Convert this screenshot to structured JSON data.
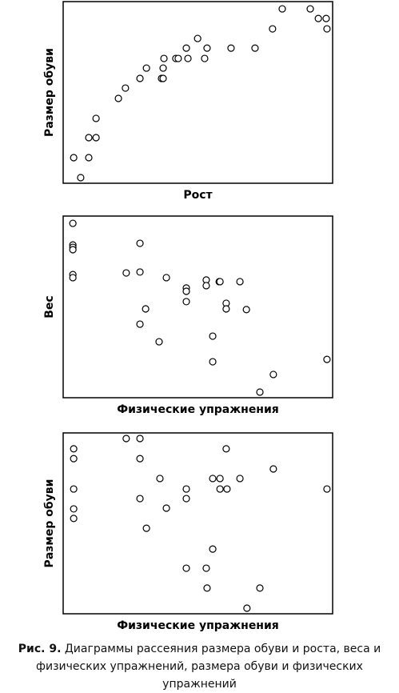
{
  "chart_data": [
    {
      "type": "scatter",
      "x_label": "Рост",
      "y_label": "Размер обуви",
      "color": "#000000",
      "xlim": [
        0,
        100
      ],
      "ylim": [
        0,
        100
      ],
      "x": [
        3.9,
        6.5,
        9.5,
        9.5,
        12.2,
        12.2,
        20.5,
        23.1,
        28.5,
        30.9,
        36.5,
        37.1,
        37.1,
        37.4,
        41.8,
        42.7,
        45.7,
        46.3,
        49.9,
        52.5,
        53.4,
        62.3,
        71.2,
        77.7,
        81.3,
        91.7,
        94.7,
        97.6,
        97.9
      ],
      "values": [
        14.1,
        3.1,
        25.1,
        14.1,
        35.7,
        25.1,
        46.7,
        52.4,
        57.7,
        63.4,
        57.7,
        57.7,
        63.4,
        68.7,
        68.7,
        68.7,
        74.4,
        68.7,
        79.7,
        68.7,
        74.4,
        74.4,
        74.4,
        85.0,
        96.0,
        96.0,
        90.7,
        90.7,
        85.0
      ]
    },
    {
      "type": "scatter",
      "x_label": "Физические упражнения",
      "y_label": "Вес",
      "color": "#000000",
      "xlim": [
        0,
        100
      ],
      "ylim": [
        0,
        100
      ],
      "x": [
        3.6,
        3.6,
        3.6,
        3.6,
        3.6,
        3.6,
        28.5,
        23.4,
        28.5,
        38.3,
        45.7,
        45.7,
        45.7,
        53.1,
        53.1,
        57.9,
        58.2,
        65.6,
        60.5,
        60.5,
        68.0,
        30.6,
        28.5,
        35.6,
        55.5,
        55.5,
        78.0,
        73.0,
        97.9
      ],
      "values": [
        96.0,
        84.1,
        82.8,
        81.5,
        67.8,
        66.1,
        85.0,
        68.7,
        69.2,
        66.1,
        60.4,
        58.6,
        52.9,
        64.8,
        61.7,
        63.9,
        63.9,
        63.9,
        52.0,
        48.9,
        48.5,
        48.9,
        40.5,
        30.8,
        33.9,
        19.8,
        12.8,
        3.1,
        21.1
      ]
    },
    {
      "type": "scatter",
      "x_label": "Физические упражнения",
      "y_label": "Размер обуви",
      "color": "#000000",
      "xlim": [
        0,
        100
      ],
      "ylim": [
        0,
        100
      ],
      "x": [
        3.9,
        3.9,
        3.9,
        3.9,
        3.9,
        23.4,
        28.5,
        28.5,
        28.5,
        30.9,
        35.9,
        38.3,
        45.7,
        45.7,
        45.7,
        53.1,
        53.4,
        55.5,
        55.5,
        58.2,
        58.2,
        60.5,
        60.8,
        65.6,
        68.2,
        73.0,
        78.0,
        97.9
      ],
      "values": [
        91.2,
        85.8,
        69.0,
        58.0,
        52.7,
        96.9,
        96.9,
        85.8,
        63.7,
        47.3,
        74.8,
        58.4,
        69.0,
        63.7,
        25.2,
        25.2,
        14.2,
        74.8,
        35.8,
        74.8,
        69.0,
        91.2,
        69.0,
        74.8,
        3.1,
        14.2,
        80.1,
        69.0
      ]
    }
  ],
  "caption": {
    "label": "Рис. 9.",
    "text": "Диаграммы рассеяния размера обуви и роста, веса и физических упражнений, размера обуви и физических упражнений"
  }
}
